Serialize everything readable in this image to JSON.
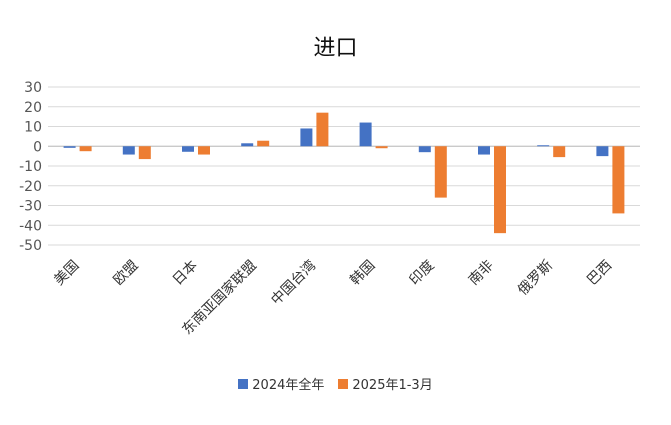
{
  "chart_data": {
    "type": "bar",
    "title": "进口",
    "xlabel": "",
    "ylabel": "",
    "categories": [
      "美国",
      "欧盟",
      "日本",
      "东南亚国家联盟",
      "中国台湾",
      "韩国",
      "印度",
      "南非",
      "俄罗斯",
      "巴西"
    ],
    "series": [
      {
        "name": "2024年全年",
        "color": "#4472C4",
        "values": [
          -0.8,
          -4.2,
          -2.8,
          1.5,
          9.0,
          12.0,
          -3.0,
          -4.2,
          0.5,
          -5.0
        ]
      },
      {
        "name": "2025年1-3月",
        "color": "#ED7D31",
        "values": [
          -2.5,
          -6.5,
          -4.2,
          2.8,
          17.0,
          -1.0,
          -26.0,
          -44.0,
          -5.5,
          -34.0
        ]
      }
    ],
    "ylim": [
      -50,
      30
    ],
    "yticks": [
      30,
      20,
      10,
      0,
      -10,
      -20,
      -30,
      -40,
      -50
    ],
    "grid": true,
    "legend_position": "bottom"
  }
}
